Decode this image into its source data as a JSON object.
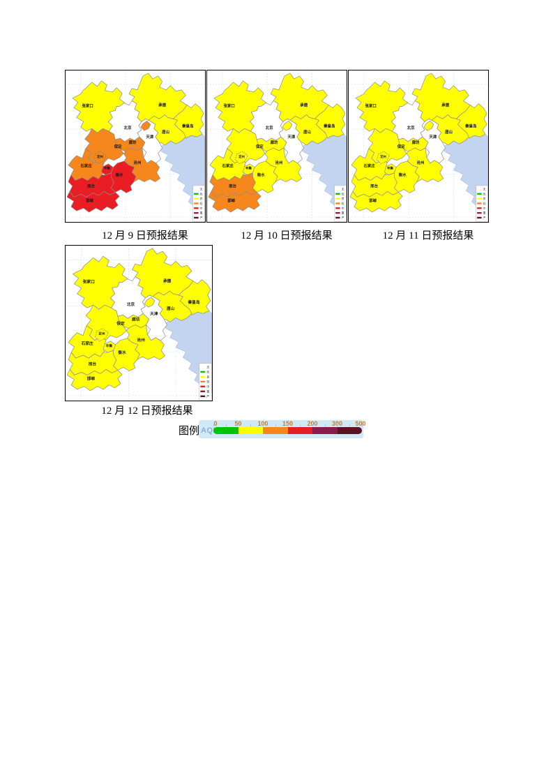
{
  "page": {
    "background": "#ffffff"
  },
  "legend_title": "图例",
  "aqi_legend": {
    "label": "AQI",
    "ticks": [
      "0",
      "50",
      "100",
      "150",
      "200",
      "300",
      "500"
    ],
    "segment_colors": [
      "#00c400",
      "#ffff00",
      "#f5871c",
      "#ea1c24",
      "#8c1a4b",
      "#5e1122"
    ],
    "panel_bg": "#cfe9f7",
    "tick_color": "#c97a33",
    "label_color": "#8ab0c8"
  },
  "sea_color": "#c3d4f0",
  "levels": {
    "wu": {
      "label": "无",
      "color": "#ffffff"
    },
    "you": {
      "label": "优",
      "color": "#00c400"
    },
    "liang": {
      "label": "良",
      "color": "#ffff00"
    },
    "qing": {
      "label": "轻",
      "color": "#f5871c"
    },
    "zhong": {
      "label": "中",
      "color": "#ea1c24"
    },
    "zhongdu": {
      "label": "重",
      "color": "#8c1a4b"
    },
    "yanzhong": {
      "label": "严",
      "color": "#5e1122"
    }
  },
  "mini_legend_order": [
    "wu",
    "you",
    "liang",
    "qing",
    "zhong",
    "zhongdu",
    "yanzhong"
  ],
  "cities": {
    "zhangjiakou": "张家口",
    "chengde": "承德",
    "beijing": "北京",
    "qinhuangdao": "秦皇岛",
    "tangshan": "唐山",
    "tianjin": "天津",
    "langfang": "廊坊",
    "baoding": "保定",
    "dingzhou": "定州",
    "cangzhou": "沧州",
    "shijiazhuang": "石家庄",
    "xinji": "辛集",
    "hengshui": "衡水",
    "xingtai": "邢台",
    "handan": "邯郸"
  },
  "maps": [
    {
      "caption": "12 月 9 日预报结果",
      "levels": {
        "zhangjiakou": "liang",
        "chengde": "liang",
        "beijing": "wu",
        "qinhuangdao": "liang",
        "tangshan": "liang",
        "tianjin": "wu",
        "langfang": "qing",
        "baoding": "qing",
        "dingzhou": "qing",
        "cangzhou": "qing",
        "shijiazhuang": "qing",
        "xinji": "zhong",
        "hengshui": "zhong",
        "xingtai": "zhong",
        "handan": "zhong"
      }
    },
    {
      "caption": "12 月 10 日预报结果",
      "levels": {
        "zhangjiakou": "liang",
        "chengde": "liang",
        "beijing": "wu",
        "qinhuangdao": "liang",
        "tangshan": "liang",
        "tianjin": "wu",
        "langfang": "liang",
        "baoding": "liang",
        "dingzhou": "liang",
        "cangzhou": "liang",
        "shijiazhuang": "liang",
        "xinji": "liang",
        "hengshui": "liang",
        "xingtai": "qing",
        "handan": "qing"
      }
    },
    {
      "caption": "12 月 11 日预报结果",
      "levels": {
        "zhangjiakou": "liang",
        "chengde": "liang",
        "beijing": "wu",
        "qinhuangdao": "liang",
        "tangshan": "liang",
        "tianjin": "wu",
        "langfang": "liang",
        "baoding": "liang",
        "dingzhou": "liang",
        "cangzhou": "liang",
        "shijiazhuang": "liang",
        "xinji": "liang",
        "hengshui": "liang",
        "xingtai": "liang",
        "handan": "liang"
      }
    },
    {
      "caption": "12 月 12 日预报结果",
      "levels": {
        "zhangjiakou": "liang",
        "chengde": "liang",
        "beijing": "wu",
        "qinhuangdao": "liang",
        "tangshan": "liang",
        "tianjin": "wu",
        "langfang": "liang",
        "baoding": "liang",
        "dingzhou": "liang",
        "cangzhou": "liang",
        "shijiazhuang": "liang",
        "xinji": "liang",
        "hengshui": "liang",
        "xingtai": "liang",
        "handan": "liang"
      }
    }
  ]
}
